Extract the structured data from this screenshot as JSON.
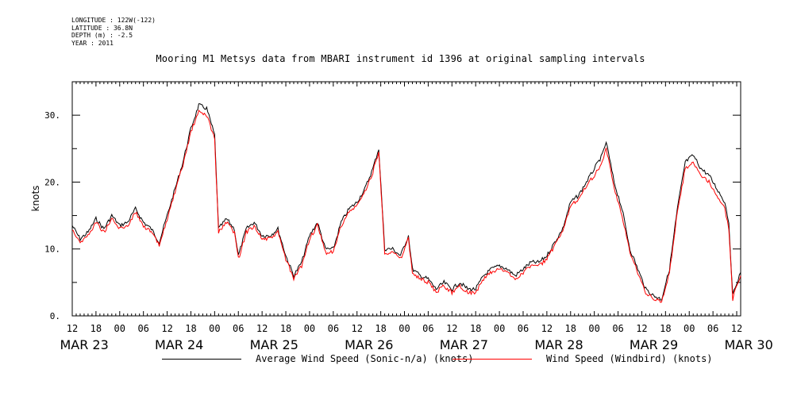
{
  "header": {
    "longitude": "LONGITUDE : 122W(-122)",
    "latitude": "LATITUDE : 36.8N",
    "depth": "DEPTH (m) : -2.5",
    "year": "YEAR : 2011"
  },
  "chart_data": {
    "type": "line",
    "title": "Mooring M1 Metsys data from MBARI instrument id 1396 at original sampling intervals",
    "xlabel": "",
    "ylabel": "knots",
    "ylim": [
      0,
      35
    ],
    "xlim": [
      "2011-03-23T12:00",
      "2011-03-30T13:00"
    ],
    "y_ticks": [
      "0.",
      "10.",
      "20.",
      "30."
    ],
    "hour_ticks": [
      "12",
      "18",
      "00",
      "06",
      "12",
      "18",
      "00",
      "06",
      "12",
      "18",
      "00",
      "06",
      "12",
      "18",
      "00",
      "06",
      "12",
      "18",
      "00",
      "06",
      "12",
      "18",
      "00",
      "06",
      "12",
      "18",
      "00",
      "06",
      "12"
    ],
    "date_labels": [
      "MAR 23",
      "MAR 24",
      "MAR 25",
      "MAR 26",
      "MAR 27",
      "MAR 28",
      "MAR 29",
      "MAR 30"
    ],
    "grid": false,
    "legend_position": "bottom",
    "series": [
      {
        "name": "Average Wind Speed (Sonic-n/a) (knots)",
        "color": "#000000",
        "points": [
          [
            "2011-03-23T12:00",
            13.5
          ],
          [
            "2011-03-23T14:00",
            11.5
          ],
          [
            "2011-03-23T16:00",
            12.5
          ],
          [
            "2011-03-23T18:00",
            14.5
          ],
          [
            "2011-03-23T20:00",
            13
          ],
          [
            "2011-03-23T22:00",
            15
          ],
          [
            "2011-03-24T00:00",
            13.5
          ],
          [
            "2011-03-24T02:00",
            14
          ],
          [
            "2011-03-24T04:00",
            16
          ],
          [
            "2011-03-24T06:00",
            14
          ],
          [
            "2011-03-24T08:00",
            13
          ],
          [
            "2011-03-24T10:00",
            11
          ],
          [
            "2011-03-24T12:00",
            15
          ],
          [
            "2011-03-24T14:00",
            19
          ],
          [
            "2011-03-24T16:00",
            23
          ],
          [
            "2011-03-24T18:00",
            28
          ],
          [
            "2011-03-24T20:00",
            31.5
          ],
          [
            "2011-03-24T22:00",
            31
          ],
          [
            "2011-03-25T00:00",
            27
          ],
          [
            "2011-03-25T01:00",
            13
          ],
          [
            "2011-03-25T03:00",
            14.5
          ],
          [
            "2011-03-25T05:00",
            13
          ],
          [
            "2011-03-25T06:00",
            9
          ],
          [
            "2011-03-25T08:00",
            13
          ],
          [
            "2011-03-25T10:00",
            14
          ],
          [
            "2011-03-25T12:00",
            12
          ],
          [
            "2011-03-25T14:00",
            12
          ],
          [
            "2011-03-25T16:00",
            13
          ],
          [
            "2011-03-25T18:00",
            9
          ],
          [
            "2011-03-25T20:00",
            6
          ],
          [
            "2011-03-25T22:00",
            8
          ],
          [
            "2011-03-26T00:00",
            12
          ],
          [
            "2011-03-26T02:00",
            14
          ],
          [
            "2011-03-26T04:00",
            10
          ],
          [
            "2011-03-26T06:00",
            10
          ],
          [
            "2011-03-26T08:00",
            14
          ],
          [
            "2011-03-26T10:00",
            16
          ],
          [
            "2011-03-26T12:00",
            17
          ],
          [
            "2011-03-26T14:00",
            19
          ],
          [
            "2011-03-26T16:00",
            22
          ],
          [
            "2011-03-26T17:30",
            25
          ],
          [
            "2011-03-26T19:00",
            10
          ],
          [
            "2011-03-26T21:00",
            10
          ],
          [
            "2011-03-26T23:00",
            9
          ],
          [
            "2011-03-27T01:00",
            12
          ],
          [
            "2011-03-27T02:00",
            7
          ],
          [
            "2011-03-27T04:00",
            6
          ],
          [
            "2011-03-27T06:00",
            5.5
          ],
          [
            "2011-03-27T08:00",
            4
          ],
          [
            "2011-03-27T10:00",
            5
          ],
          [
            "2011-03-27T12:00",
            4
          ],
          [
            "2011-03-27T14:00",
            5
          ],
          [
            "2011-03-27T16:00",
            4
          ],
          [
            "2011-03-27T18:00",
            4
          ],
          [
            "2011-03-27T20:00",
            6
          ],
          [
            "2011-03-27T22:00",
            7
          ],
          [
            "2011-03-28T00:00",
            7.5
          ],
          [
            "2011-03-28T02:00",
            7
          ],
          [
            "2011-03-28T04:00",
            6
          ],
          [
            "2011-03-28T06:00",
            7
          ],
          [
            "2011-03-28T08:00",
            8
          ],
          [
            "2011-03-28T10:00",
            8
          ],
          [
            "2011-03-28T12:00",
            9
          ],
          [
            "2011-03-28T14:00",
            11
          ],
          [
            "2011-03-28T16:00",
            13
          ],
          [
            "2011-03-28T18:00",
            17
          ],
          [
            "2011-03-28T20:00",
            18
          ],
          [
            "2011-03-28T22:00",
            20
          ],
          [
            "2011-03-29T00:00",
            22
          ],
          [
            "2011-03-29T02:00",
            24
          ],
          [
            "2011-03-29T03:00",
            26
          ],
          [
            "2011-03-29T05:00",
            20
          ],
          [
            "2011-03-29T07:00",
            16
          ],
          [
            "2011-03-29T09:00",
            10
          ],
          [
            "2011-03-29T11:00",
            7
          ],
          [
            "2011-03-29T13:00",
            4
          ],
          [
            "2011-03-29T15:00",
            3
          ],
          [
            "2011-03-29T17:00",
            2.5
          ],
          [
            "2011-03-29T19:00",
            7
          ],
          [
            "2011-03-29T21:00",
            16
          ],
          [
            "2011-03-29T23:00",
            23
          ],
          [
            "2011-03-30T01:00",
            24
          ],
          [
            "2011-03-30T03:00",
            22
          ],
          [
            "2011-03-30T05:00",
            21
          ],
          [
            "2011-03-30T07:00",
            19
          ],
          [
            "2011-03-30T09:00",
            17
          ],
          [
            "2011-03-30T10:00",
            14
          ],
          [
            "2011-03-30T11:00",
            3
          ],
          [
            "2011-03-30T12:00",
            5
          ],
          [
            "2011-03-30T13:00",
            6.5
          ]
        ]
      },
      {
        "name": "Wind Speed (Windbird) (knots)",
        "color": "#ff0000",
        "points": [
          [
            "2011-03-23T12:00",
            13
          ],
          [
            "2011-03-23T14:00",
            11
          ],
          [
            "2011-03-23T16:00",
            12
          ],
          [
            "2011-03-23T18:00",
            14
          ],
          [
            "2011-03-23T20:00",
            12.5
          ],
          [
            "2011-03-23T22:00",
            14.5
          ],
          [
            "2011-03-24T00:00",
            13
          ],
          [
            "2011-03-24T02:00",
            13.5
          ],
          [
            "2011-03-24T04:00",
            15.5
          ],
          [
            "2011-03-24T06:00",
            13.5
          ],
          [
            "2011-03-24T08:00",
            12.5
          ],
          [
            "2011-03-24T10:00",
            10.5
          ],
          [
            "2011-03-24T12:00",
            14.5
          ],
          [
            "2011-03-24T14:00",
            18.5
          ],
          [
            "2011-03-24T16:00",
            22.5
          ],
          [
            "2011-03-24T18:00",
            27.5
          ],
          [
            "2011-03-24T20:00",
            30.5
          ],
          [
            "2011-03-24T22:00",
            30
          ],
          [
            "2011-03-25T00:00",
            26.5
          ],
          [
            "2011-03-25T01:00",
            12.5
          ],
          [
            "2011-03-25T03:00",
            14
          ],
          [
            "2011-03-25T05:00",
            12.5
          ],
          [
            "2011-03-25T06:00",
            8.5
          ],
          [
            "2011-03-25T08:00",
            12.5
          ],
          [
            "2011-03-25T10:00",
            13.5
          ],
          [
            "2011-03-25T12:00",
            11.5
          ],
          [
            "2011-03-25T14:00",
            11.5
          ],
          [
            "2011-03-25T16:00",
            12.5
          ],
          [
            "2011-03-25T18:00",
            8.5
          ],
          [
            "2011-03-25T20:00",
            5.5
          ],
          [
            "2011-03-25T22:00",
            7.5
          ],
          [
            "2011-03-26T00:00",
            11.5
          ],
          [
            "2011-03-26T02:00",
            13.5
          ],
          [
            "2011-03-26T04:00",
            9.5
          ],
          [
            "2011-03-26T06:00",
            9.5
          ],
          [
            "2011-03-26T08:00",
            13.5
          ],
          [
            "2011-03-26T10:00",
            15.5
          ],
          [
            "2011-03-26T12:00",
            16.5
          ],
          [
            "2011-03-26T14:00",
            18.5
          ],
          [
            "2011-03-26T16:00",
            21.5
          ],
          [
            "2011-03-26T17:30",
            24.5
          ],
          [
            "2011-03-26T19:00",
            9.5
          ],
          [
            "2011-03-26T21:00",
            9.5
          ],
          [
            "2011-03-26T23:00",
            8.5
          ],
          [
            "2011-03-27T01:00",
            11.5
          ],
          [
            "2011-03-27T02:00",
            6.5
          ],
          [
            "2011-03-27T04:00",
            5.5
          ],
          [
            "2011-03-27T06:00",
            5
          ],
          [
            "2011-03-27T08:00",
            3.5
          ],
          [
            "2011-03-27T10:00",
            4.5
          ],
          [
            "2011-03-27T12:00",
            3.5
          ],
          [
            "2011-03-27T14:00",
            4.5
          ],
          [
            "2011-03-27T16:00",
            3.5
          ],
          [
            "2011-03-27T18:00",
            3.5
          ],
          [
            "2011-03-27T20:00",
            5.5
          ],
          [
            "2011-03-27T22:00",
            6.5
          ],
          [
            "2011-03-28T00:00",
            7
          ],
          [
            "2011-03-28T02:00",
            6.5
          ],
          [
            "2011-03-28T04:00",
            5.5
          ],
          [
            "2011-03-28T06:00",
            6.5
          ],
          [
            "2011-03-28T08:00",
            7.5
          ],
          [
            "2011-03-28T10:00",
            7.5
          ],
          [
            "2011-03-28T12:00",
            8.5
          ],
          [
            "2011-03-28T14:00",
            10.5
          ],
          [
            "2011-03-28T16:00",
            12.5
          ],
          [
            "2011-03-28T18:00",
            16.5
          ],
          [
            "2011-03-28T20:00",
            17.5
          ],
          [
            "2011-03-28T22:00",
            19.5
          ],
          [
            "2011-03-29T00:00",
            21
          ],
          [
            "2011-03-29T02:00",
            23
          ],
          [
            "2011-03-29T03:00",
            25
          ],
          [
            "2011-03-29T05:00",
            19
          ],
          [
            "2011-03-29T07:00",
            15
          ],
          [
            "2011-03-29T09:00",
            9.5
          ],
          [
            "2011-03-29T11:00",
            6.5
          ],
          [
            "2011-03-29T13:00",
            3.5
          ],
          [
            "2011-03-29T15:00",
            2.5
          ],
          [
            "2011-03-29T17:00",
            2
          ],
          [
            "2011-03-29T19:00",
            6.5
          ],
          [
            "2011-03-29T21:00",
            15.5
          ],
          [
            "2011-03-29T23:00",
            22
          ],
          [
            "2011-03-30T01:00",
            23
          ],
          [
            "2011-03-30T03:00",
            21
          ],
          [
            "2011-03-30T05:00",
            20
          ],
          [
            "2011-03-30T07:00",
            18
          ],
          [
            "2011-03-30T09:00",
            16
          ],
          [
            "2011-03-30T10:00",
            13
          ],
          [
            "2011-03-30T11:00",
            2.5
          ],
          [
            "2011-03-30T12:00",
            4.5
          ],
          [
            "2011-03-30T13:00",
            6
          ]
        ]
      }
    ]
  }
}
